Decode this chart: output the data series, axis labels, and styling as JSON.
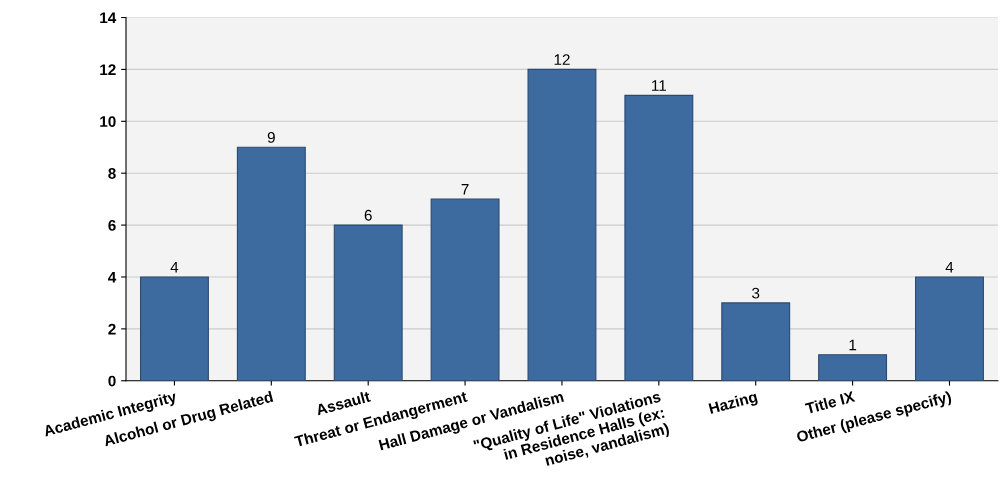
{
  "chart_data": {
    "type": "bar",
    "categories": [
      "Academic Integrity",
      "Alcohol or Drug Related",
      "Assault",
      "Threat or Endangerment",
      "Hall Damage or Vandalism",
      "\"Quality of Life\" Violations\nin Residence Halls (ex:\nnoise, vandalism)",
      "Hazing",
      "Title IX",
      "Other (please specify)"
    ],
    "values": [
      4,
      9,
      6,
      7,
      12,
      11,
      3,
      1,
      4
    ],
    "color": "#3e6b9f",
    "ylim": [
      0,
      14
    ],
    "yticks": [
      0,
      2,
      4,
      6,
      8,
      10,
      12,
      14
    ],
    "grid": "y",
    "data_labels": true
  }
}
